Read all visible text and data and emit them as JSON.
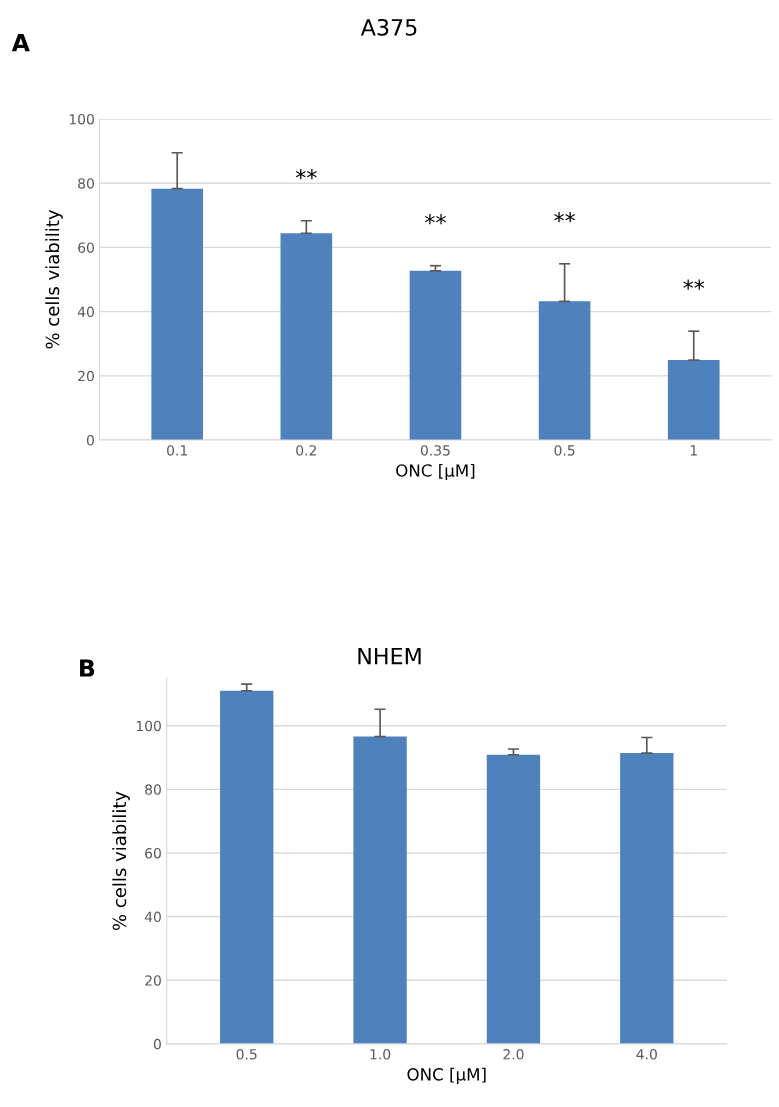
{
  "chart_data": [
    {
      "type": "bar",
      "title": "A375",
      "xlabel": "ONC [µM]",
      "ylabel": "% cells viability",
      "categories": [
        "0.1",
        "0.2",
        "0.35",
        "0.5",
        "1"
      ],
      "values": [
        78.3,
        64.4,
        52.7,
        43.2,
        24.9
      ],
      "color": "#4f81bd",
      "errors": [
        [
          78.3,
          89.5
        ],
        [
          64.4,
          68.3
        ],
        [
          52.7,
          54.3
        ],
        [
          43.2,
          54.9
        ],
        [
          24.9,
          33.9
        ]
      ],
      "ylim": [
        0,
        100
      ],
      "yticks": [
        0,
        20,
        40,
        60,
        80,
        100
      ],
      "grid": "y",
      "legend": false,
      "annotations": [
        "A",
        "**",
        "**",
        "**",
        "**"
      ]
    },
    {
      "type": "bar",
      "title": "NHEM",
      "xlabel": "ONC [µM]",
      "ylabel": "% cells viability",
      "categories": [
        "0.5",
        "1.0",
        "2.0",
        "4.0"
      ],
      "values": [
        111.0,
        96.6,
        90.9,
        91.4
      ],
      "color": "#4f81bd",
      "errors": [
        [
          111.0,
          113.1
        ],
        [
          96.6,
          105.2
        ],
        [
          90.9,
          92.7
        ],
        [
          91.4,
          96.3
        ]
      ],
      "ylim": [
        0,
        115
      ],
      "yticks": [
        0,
        20,
        40,
        60,
        80,
        100
      ],
      "grid": "y",
      "legend": false,
      "annotations": [
        "B"
      ]
    }
  ]
}
